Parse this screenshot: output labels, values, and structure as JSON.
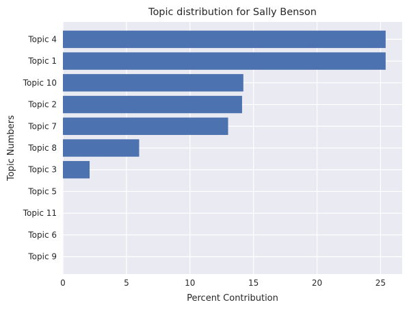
{
  "chart_data": {
    "type": "bar",
    "orientation": "horizontal",
    "title": "Topic distribution for Sally Benson",
    "xlabel": "Percent Contribution",
    "ylabel": "Topic Numbers",
    "categories": [
      "Topic 4",
      "Topic 1",
      "Topic 10",
      "Topic 2",
      "Topic 7",
      "Topic 8",
      "Topic 3",
      "Topic 5",
      "Topic 11",
      "Topic 6",
      "Topic 9"
    ],
    "values": [
      25.4,
      25.4,
      14.2,
      14.1,
      13.0,
      6.0,
      2.1,
      0,
      0,
      0,
      0
    ],
    "xlim": [
      0,
      26.7
    ],
    "xticks": [
      "0",
      "5",
      "10",
      "15",
      "20",
      "25"
    ],
    "grid": true,
    "colors": {
      "bar": "#4c72b0",
      "plot_background": "#eaeaf2",
      "grid": "#ffffff"
    }
  }
}
